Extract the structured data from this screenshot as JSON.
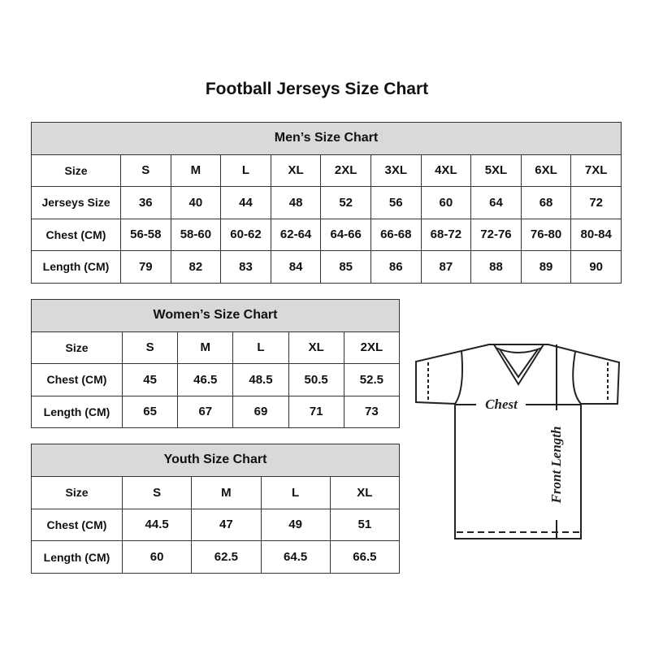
{
  "title": "Football Jerseys Size Chart",
  "men": {
    "heading": "Men’s Size Chart",
    "rows": [
      [
        "Size",
        "S",
        "M",
        "L",
        "XL",
        "2XL",
        "3XL",
        "4XL",
        "5XL",
        "6XL",
        "7XL"
      ],
      [
        "Jerseys Size",
        "36",
        "40",
        "44",
        "48",
        "52",
        "56",
        "60",
        "64",
        "68",
        "72"
      ],
      [
        "Chest (CM)",
        "56-58",
        "58-60",
        "60-62",
        "62-64",
        "64-66",
        "66-68",
        "68-72",
        "72-76",
        "76-80",
        "80-84"
      ],
      [
        "Length (CM)",
        "79",
        "82",
        "83",
        "84",
        "85",
        "86",
        "87",
        "88",
        "89",
        "90"
      ]
    ]
  },
  "women": {
    "heading": "Women’s Size Chart",
    "rows": [
      [
        "Size",
        "S",
        "M",
        "L",
        "XL",
        "2XL"
      ],
      [
        "Chest (CM)",
        "45",
        "46.5",
        "48.5",
        "50.5",
        "52.5"
      ],
      [
        "Length (CM)",
        "65",
        "67",
        "69",
        "71",
        "73"
      ]
    ]
  },
  "youth": {
    "heading": "Youth Size Chart",
    "rows": [
      [
        "Size",
        "S",
        "M",
        "L",
        "XL"
      ],
      [
        "Chest (CM)",
        "44.5",
        "47",
        "49",
        "51"
      ],
      [
        "Length (CM)",
        "60",
        "62.5",
        "64.5",
        "66.5"
      ]
    ]
  },
  "diagram": {
    "chest": "Chest",
    "length": "Front Length"
  }
}
